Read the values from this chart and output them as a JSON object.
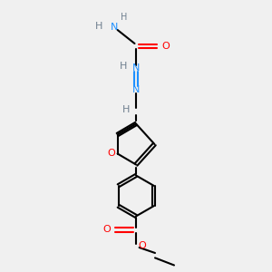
{
  "bg_color": "#f0f0f0",
  "title": "",
  "atoms": {
    "colors": {
      "C": "#000000",
      "N": "#1E90FF",
      "O": "#FF0000",
      "H": "#708090"
    }
  },
  "figsize": [
    3.0,
    3.0
  ],
  "dpi": 100
}
